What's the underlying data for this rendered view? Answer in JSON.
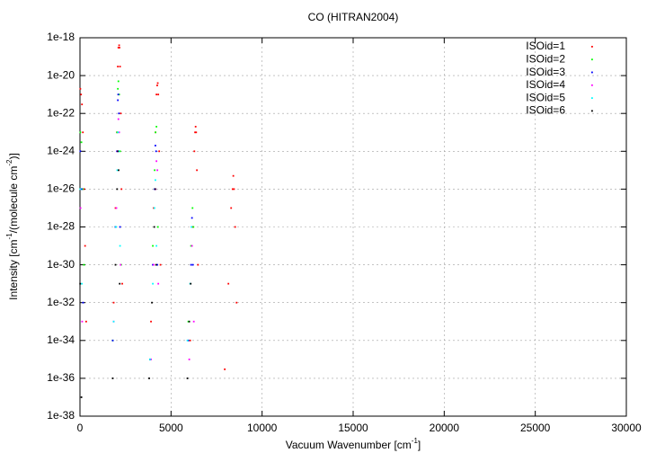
{
  "chart_data": {
    "type": "scatter",
    "title": "CO (HITRAN2004)",
    "x_label_parts": [
      "Vacuum Wavenumber [cm",
      "-1",
      "]"
    ],
    "y_label_parts": [
      "Intensity [cm",
      "-1",
      "/(molecule cm",
      "-2",
      ")]"
    ],
    "xlim": [
      0,
      30000
    ],
    "xticks": [
      0,
      5000,
      10000,
      15000,
      20000,
      25000,
      30000
    ],
    "ylim": [
      1e-38,
      1e-18
    ],
    "ylog": true,
    "yticks": [
      {
        "value": 1e-38,
        "label": "1e-38"
      },
      {
        "value": 1e-36,
        "label": "1e-36"
      },
      {
        "value": 1e-34,
        "label": "1e-34"
      },
      {
        "value": 1e-32,
        "label": "1e-32"
      },
      {
        "value": 1e-30,
        "label": "1e-30"
      },
      {
        "value": 1e-28,
        "label": "1e-28"
      },
      {
        "value": 1e-26,
        "label": "1e-26"
      },
      {
        "value": 1e-24,
        "label": "1e-24"
      },
      {
        "value": 1e-22,
        "label": "1e-22"
      },
      {
        "value": 1e-20,
        "label": "1e-20"
      },
      {
        "value": 1e-18,
        "label": "1e-18"
      }
    ],
    "grid": true,
    "legend": "top-right",
    "series": [
      {
        "name": "ISOid=1",
        "color": "#ff0000",
        "x": [
          20,
          60,
          110,
          160,
          220,
          280,
          340,
          1850,
          1950,
          2030,
          2080,
          2110,
          2150,
          2170,
          2200,
          2240,
          2280,
          2320,
          3900,
          4050,
          4150,
          4200,
          4240,
          4270,
          4300,
          4350,
          4420,
          6050,
          6200,
          6280,
          6320,
          6350,
          6380,
          6420,
          6480,
          7950,
          8150,
          8300,
          8380,
          8420,
          8460,
          8520,
          8600
        ],
        "values": [
          2e-21,
          1e-21,
          3e-22,
          1e-23,
          1e-26,
          1e-29,
          1e-33,
          1e-32,
          1e-27,
          1e-23,
          3e-20,
          3e-19,
          4e-19,
          3e-19,
          3e-20,
          1e-22,
          1e-26,
          1e-31,
          1e-33,
          1e-27,
          1e-23,
          1e-21,
          3e-21,
          4e-21,
          1e-21,
          1e-24,
          1e-30,
          1e-34,
          1e-28,
          1e-24,
          1e-23,
          2e-23,
          1e-23,
          1e-25,
          1e-30,
          3e-36,
          1e-31,
          1e-27,
          1e-26,
          5e-26,
          1e-26,
          1e-28,
          1e-32
        ]
      },
      {
        "name": "ISOid=2",
        "color": "#00ff00",
        "x": [
          20,
          80,
          150,
          220,
          1800,
          1950,
          2040,
          2080,
          2110,
          2150,
          2200,
          2260,
          3850,
          4000,
          4100,
          4150,
          4200,
          4280,
          5950,
          6100,
          6180,
          6230
        ],
        "values": [
          1e-23,
          3e-24,
          1e-26,
          1e-30,
          1e-34,
          1e-28,
          1e-23,
          2e-21,
          5e-21,
          1e-21,
          1e-24,
          1e-30,
          1e-35,
          1e-29,
          1e-25,
          1e-23,
          2e-23,
          1e-28,
          1e-33,
          1e-29,
          1e-27,
          1e-28
        ]
      },
      {
        "name": "ISOid=3",
        "color": "#0000ff",
        "x": [
          20,
          90,
          170,
          1800,
          1950,
          2030,
          2080,
          2100,
          2140,
          2200,
          3850,
          4000,
          4100,
          4140,
          4180,
          4250,
          5950,
          6100,
          6150,
          6200
        ],
        "values": [
          1e-24,
          1e-26,
          1e-32,
          1e-34,
          1e-28,
          1e-24,
          5e-22,
          1e-21,
          1e-22,
          1e-28,
          1e-35,
          1e-30,
          1e-26,
          2e-24,
          1e-24,
          1e-30,
          1e-34,
          1e-30,
          3e-28,
          1e-30
        ]
      },
      {
        "name": "ISOid=4",
        "color": "#ff00ff",
        "x": [
          30,
          120,
          1850,
          2000,
          2060,
          2110,
          2150,
          2230,
          3900,
          4050,
          4150,
          4200,
          4250,
          4300,
          6000,
          6150,
          6250
        ],
        "values": [
          1e-27,
          1e-33,
          1e-33,
          1e-27,
          1e-24,
          5e-23,
          1e-23,
          1e-30,
          1e-35,
          1e-30,
          1e-26,
          3e-25,
          1e-25,
          1e-31,
          1e-35,
          1e-29,
          1e-33
        ]
      },
      {
        "name": "ISOid=5",
        "color": "#00ffff",
        "x": [
          15,
          100,
          1850,
          1980,
          2050,
          2090,
          2130,
          2200,
          3850,
          4000,
          4090,
          4140,
          4200,
          5900,
          6050,
          6120
        ],
        "values": [
          1e-26,
          1e-31,
          1e-33,
          1e-28,
          1e-25,
          1e-23,
          1e-24,
          1e-29,
          1e-35,
          1e-31,
          1e-27,
          3e-26,
          1e-29,
          1e-34,
          1e-31,
          1e-28
        ]
      },
      {
        "name": "ISOid=6",
        "color": "#000000",
        "x": [
          10,
          80,
          1800,
          1950,
          2040,
          2080,
          2120,
          2180,
          3800,
          3950,
          4080,
          4130,
          4180,
          5900,
          6000,
          6080
        ],
        "values": [
          1e-31,
          1e-37,
          1e-36,
          1e-30,
          1e-26,
          1e-24,
          1e-25,
          1e-31,
          1e-36,
          1e-32,
          1e-28,
          1e-26,
          1e-30,
          1e-36,
          1e-33,
          1e-31
        ]
      }
    ]
  }
}
